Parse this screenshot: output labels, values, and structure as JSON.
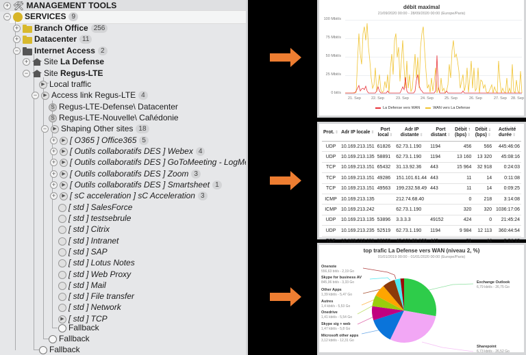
{
  "tree": {
    "items": [
      {
        "label": "MANAGEMENT TOOLS",
        "icon": "tools-icon",
        "level": 0,
        "bold": true,
        "expander": "+"
      },
      {
        "label": "SERVICES",
        "icon": "globe-icon",
        "level": 0,
        "bold": true,
        "expander": "-",
        "badge": "9",
        "selected": true
      },
      {
        "label": "Branch Office",
        "icon": "folder-icon",
        "level": 1,
        "bold": true,
        "expander": "+",
        "badge": "256"
      },
      {
        "label": "Datacenter",
        "icon": "folder-icon",
        "level": 1,
        "bold": true,
        "expander": "+",
        "badge": "11"
      },
      {
        "label": "Internet Access",
        "icon": "folder-dark-icon",
        "level": 1,
        "bold": true,
        "expander": "-",
        "badge": "2"
      },
      {
        "prefix": "Site ",
        "label": "La Defense",
        "icon": "site-icon",
        "level": 2,
        "expander": "+"
      },
      {
        "prefix": "Site ",
        "label": "Regus-LTE",
        "icon": "site-icon",
        "level": 2,
        "expander": "-"
      },
      {
        "label": "Local traffic",
        "icon": "play-circle-icon",
        "level": 3
      },
      {
        "label": "Access link Regus-LTE",
        "icon": "play-circle-icon",
        "level": 3,
        "expander": "-",
        "badge": "4"
      },
      {
        "label": "Regus-LTE-Defense\\ Datacenter",
        "icon": "s-circle-icon",
        "level": 4
      },
      {
        "label": "Regus-LTE-Nouvelle\\ Cal\\édonie",
        "icon": "s-circle-icon",
        "level": 4
      },
      {
        "label": "Shaping Other sites",
        "icon": "play-circle-icon",
        "level": 4,
        "expander": "-",
        "badge": "18"
      },
      {
        "label": "[ O365 ] Office365",
        "icon": "play-circle-icon",
        "level": 5,
        "italic": true,
        "expander": "+",
        "badge": "5"
      },
      {
        "label": "[ Outils collaboratifs DES ] Webex",
        "icon": "play-circle-icon",
        "level": 5,
        "italic": true,
        "expander": "+",
        "badge": "4"
      },
      {
        "label": "[ Outils collaboratifs DES ] GoToMeeting - LogMeIn",
        "icon": "play-circle-icon",
        "level": 5,
        "italic": true,
        "expander": "+",
        "badge": "1"
      },
      {
        "label": "[ Outils collaboratifs DES ] Zoom",
        "icon": "play-circle-icon",
        "level": 5,
        "italic": true,
        "expander": "+",
        "badge": "3"
      },
      {
        "label": "[ Outils collaboratifs DES ] Smartsheet",
        "icon": "play-circle-icon",
        "level": 5,
        "italic": true,
        "expander": "+",
        "badge": "1"
      },
      {
        "label": "[ sC acceleration ] sC Acceleration",
        "icon": "play-circle-icon",
        "level": 5,
        "italic": true,
        "expander": "+",
        "badge": "3"
      },
      {
        "label": "[ std ] SalesForce",
        "icon": "clock-circle-icon",
        "level": 5,
        "italic": true
      },
      {
        "label": "[ std ] testsebrule",
        "icon": "clock-circle-icon",
        "level": 5,
        "italic": true
      },
      {
        "label": "[ std ] Citrix",
        "icon": "clock-circle-icon",
        "level": 5,
        "italic": true
      },
      {
        "label": "[ std ] Intranet",
        "icon": "clock-circle-icon",
        "level": 5,
        "italic": true
      },
      {
        "label": "[ std ] SAP",
        "icon": "clock-circle-icon",
        "level": 5,
        "italic": true
      },
      {
        "label": "[ std ] Lotus Notes",
        "icon": "clock-circle-icon",
        "level": 5,
        "italic": true
      },
      {
        "label": "[ std ] Web Proxy",
        "icon": "clock-circle-icon",
        "level": 5,
        "italic": true
      },
      {
        "label": "[ std ] Mail",
        "icon": "clock-circle-icon",
        "level": 5,
        "italic": true
      },
      {
        "label": "[ std ] File transfer",
        "icon": "clock-circle-icon",
        "level": 5,
        "italic": true
      },
      {
        "label": "[ std ] Network",
        "icon": "clock-circle-icon",
        "level": 5,
        "italic": true
      },
      {
        "label": "[ std ] TCP",
        "icon": "play-circle-icon",
        "level": 5,
        "italic": true
      },
      {
        "label": "Fallback",
        "icon": "empty-circle-icon",
        "level": 5
      },
      {
        "label": "Fallback",
        "icon": "empty-circle-icon",
        "level": 4
      },
      {
        "label": "Fallback",
        "icon": "empty-circle-icon",
        "level": 3
      }
    ]
  },
  "arrows": {
    "color": "#ed7d31"
  },
  "throughput_chart": {
    "title": "débit maximal",
    "subtitle": "21/09/2020 00:00 - 28/09/2020 00:00 (Europe/Paris)",
    "y_ticks": [
      "100 Mbit/s",
      "75 Mbit/s",
      "50 Mbit/s",
      "25 Mbit/s",
      "0 bit/s"
    ],
    "x_ticks": [
      "21. Sep",
      "22. Sep",
      "23. Sep",
      "24. Sep",
      "25. Sep",
      "26. Sep",
      "27. Sep",
      "28. Sep"
    ],
    "legend": [
      {
        "label": "La Defense vers WAN",
        "color": "#e8333a"
      },
      {
        "label": "WAN vers La Defense",
        "color": "#f0c330"
      }
    ]
  },
  "connections_table": {
    "columns": [
      "Prot.",
      "Adr IP locale",
      "Port local",
      "Adr IP distante",
      "Port distant",
      "Débit ↑ (bps)",
      "Débit ↓ (bps)",
      "Activité durée"
    ],
    "rows": [
      [
        "UDP",
        "10.169.213.151",
        "61826",
        "62.73.1.190",
        "1194",
        "456",
        "566",
        "445:46:06"
      ],
      [
        "UDP",
        "10.169.213.135",
        "58891",
        "62.73.1.190",
        "1194",
        "13 160",
        "13 320",
        "45:08:16"
      ],
      [
        "TCP",
        "10.169.213.151",
        "65432",
        "31.13.92.36",
        "443",
        "15 964",
        "32 918",
        "0:24:03"
      ],
      [
        "TCP",
        "10.169.213.151",
        "49286",
        "151.101.61.44",
        "443",
        "11",
        "14",
        "0:11:08"
      ],
      [
        "TCP",
        "10.169.213.151",
        "49563",
        "199.232.58.49",
        "443",
        "11",
        "14",
        "0:09:25"
      ],
      [
        "ICMP",
        "10.169.213.135",
        "",
        "212.74.68.40",
        "",
        "0",
        "218",
        "3:14:08"
      ],
      [
        "ICMP",
        "10.169.213.242",
        "",
        "62.73.1.190",
        "",
        "320",
        "320",
        "1036:17:06"
      ],
      [
        "UDP",
        "10.169.213.135",
        "53896",
        "3.3.3.3",
        "49152",
        "424",
        "0",
        "21:45:24"
      ],
      [
        "UDP",
        "10.169.213.235",
        "52519",
        "62.73.1.190",
        "1194",
        "9 984",
        "12 113",
        "360:44:54"
      ],
      [
        "TCP",
        "10.169.213.151",
        "58190",
        "40.101.81.130",
        "443",
        "21",
        "44",
        "0:04:13"
      ]
    ]
  },
  "pie_chart": {
    "title": "top trafic La Defense vers WAN (niveau 2, %)",
    "subtitle": "01/01/2019 00:00 - 01/01/2020 00:00 (Europe/Paris)",
    "slices": [
      {
        "name": "Exchange Outlook",
        "value": "6,79 kbit/s - 26,75 Go",
        "color": "#2ecc4a"
      },
      {
        "name": "Sharepoint",
        "value": "6,73 kbit/s - 26,52 Go",
        "color": "#f2a7f5"
      },
      {
        "name": "Microsoft other apps",
        "value": "3,12 kbit/s - 12,31 Go",
        "color": "#0a74da"
      },
      {
        "name": "Skype sig + web",
        "value": "1,47 kbit/s - 5,8 Go",
        "color": "#c1007f"
      },
      {
        "name": "Onedrive",
        "value": "1,41 kbit/s - 5,54 Go",
        "color": "#9acd0c"
      },
      {
        "name": "Autres",
        "value": "1,4 kbit/s - 5,53 Go",
        "color": "#ffa500"
      },
      {
        "name": "Other Apps",
        "value": "1,39 kbit/s - 5,47 Go",
        "color": "#8b3a0a"
      },
      {
        "name": "Skype for business AV",
        "value": "845,06 bit/s - 3,33 Go",
        "color": "#4ee8f0"
      },
      {
        "name": "Onenote",
        "value": "556,63 bit/s - 2,19 Go",
        "color": "#9b0a0a"
      }
    ]
  }
}
